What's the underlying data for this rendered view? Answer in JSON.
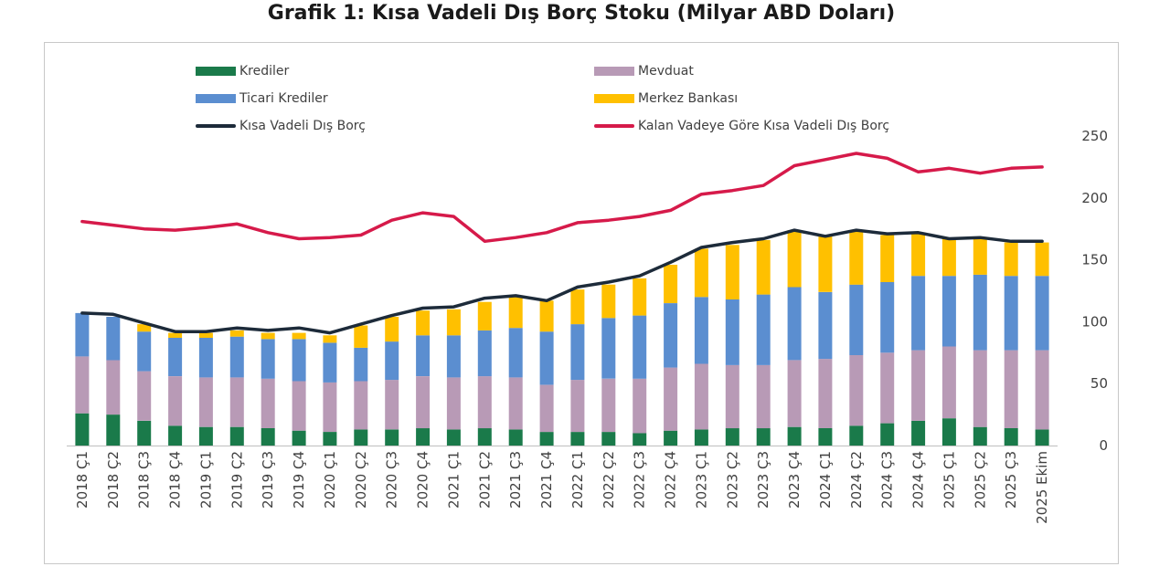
{
  "chart_data": {
    "type": "bar",
    "title": "Grafik 1: Kısa Vadeli Dış Borç Stoku (Milyar ABD Doları)",
    "categories": [
      "2018 Ç1",
      "2018 Ç2",
      "2018 Ç3",
      "2018 Ç4",
      "2019 Ç1",
      "2019 Ç2",
      "2019 Ç3",
      "2019 Ç4",
      "2020 Ç1",
      "2020 Ç2",
      "2020 Ç3",
      "2020 Ç4",
      "2021 Ç1",
      "2021 Ç2",
      "2021 Ç3",
      "2021 Ç4",
      "2022 Ç1",
      "2022 Ç2",
      "2022 Ç3",
      "2022 Ç4",
      "2023 Ç1",
      "2023 Ç2",
      "2023 Ç3",
      "2023 Ç4",
      "2024 Ç1",
      "2024 Ç2",
      "2024 Ç3",
      "2024 Ç4",
      "2025 Ç1",
      "2025 Ç2",
      "2025 Ç3",
      "2025 Ekim"
    ],
    "stacked": true,
    "ylim": [
      0,
      250
    ],
    "yticks": [
      0,
      50,
      100,
      150,
      200,
      250
    ],
    "y_axis_side": "right",
    "xlabel": "",
    "ylabel": "",
    "legend_position": "top",
    "series": [
      {
        "name": "Krediler",
        "kind": "bar",
        "color": "#1a7a4a",
        "values": [
          26,
          25,
          20,
          16,
          15,
          15,
          14,
          12,
          11,
          13,
          13,
          14,
          13,
          14,
          13,
          11,
          11,
          11,
          10,
          12,
          13,
          14,
          14,
          15,
          14,
          16,
          18,
          20,
          22,
          15,
          14,
          13
        ]
      },
      {
        "name": "Mevduat",
        "kind": "bar",
        "color": "#b89ab6",
        "values": [
          46,
          44,
          40,
          40,
          40,
          40,
          40,
          40,
          40,
          39,
          40,
          42,
          42,
          42,
          42,
          38,
          42,
          43,
          44,
          51,
          53,
          51,
          51,
          54,
          56,
          57,
          57,
          57,
          58,
          62,
          63,
          64
        ]
      },
      {
        "name": "Ticari Krediler",
        "kind": "bar",
        "color": "#5b8ed0",
        "values": [
          35,
          35,
          32,
          31,
          32,
          33,
          32,
          34,
          32,
          27,
          31,
          33,
          34,
          37,
          40,
          43,
          45,
          49,
          51,
          52,
          54,
          53,
          57,
          59,
          54,
          57,
          57,
          60,
          57,
          61,
          60,
          60
        ]
      },
      {
        "name": "Merkez Bankası",
        "kind": "bar",
        "color": "#ffc000",
        "values": [
          0,
          0,
          6,
          4,
          4,
          5,
          5,
          5,
          6,
          18,
          20,
          20,
          21,
          23,
          26,
          25,
          28,
          27,
          30,
          31,
          39,
          44,
          44,
          46,
          45,
          44,
          38,
          34,
          30,
          30,
          27,
          27
        ]
      },
      {
        "name": "Kısa Vadeli Dış Borç",
        "kind": "line",
        "color": "#1d2b3a",
        "values": [
          107,
          106,
          99,
          92,
          92,
          95,
          93,
          95,
          91,
          98,
          105,
          111,
          112,
          119,
          121,
          117,
          128,
          132,
          137,
          148,
          160,
          164,
          167,
          174,
          169,
          174,
          171,
          172,
          167,
          168,
          165,
          165
        ]
      },
      {
        "name": "Kalan Vadeye Göre Kısa Vadeli Dış Borç",
        "kind": "line",
        "color": "#d61a4a",
        "values": [
          181,
          178,
          175,
          174,
          176,
          179,
          172,
          167,
          168,
          170,
          182,
          188,
          185,
          165,
          168,
          172,
          180,
          182,
          185,
          190,
          203,
          206,
          210,
          226,
          231,
          236,
          232,
          221,
          224,
          220,
          224,
          225
        ]
      }
    ]
  }
}
